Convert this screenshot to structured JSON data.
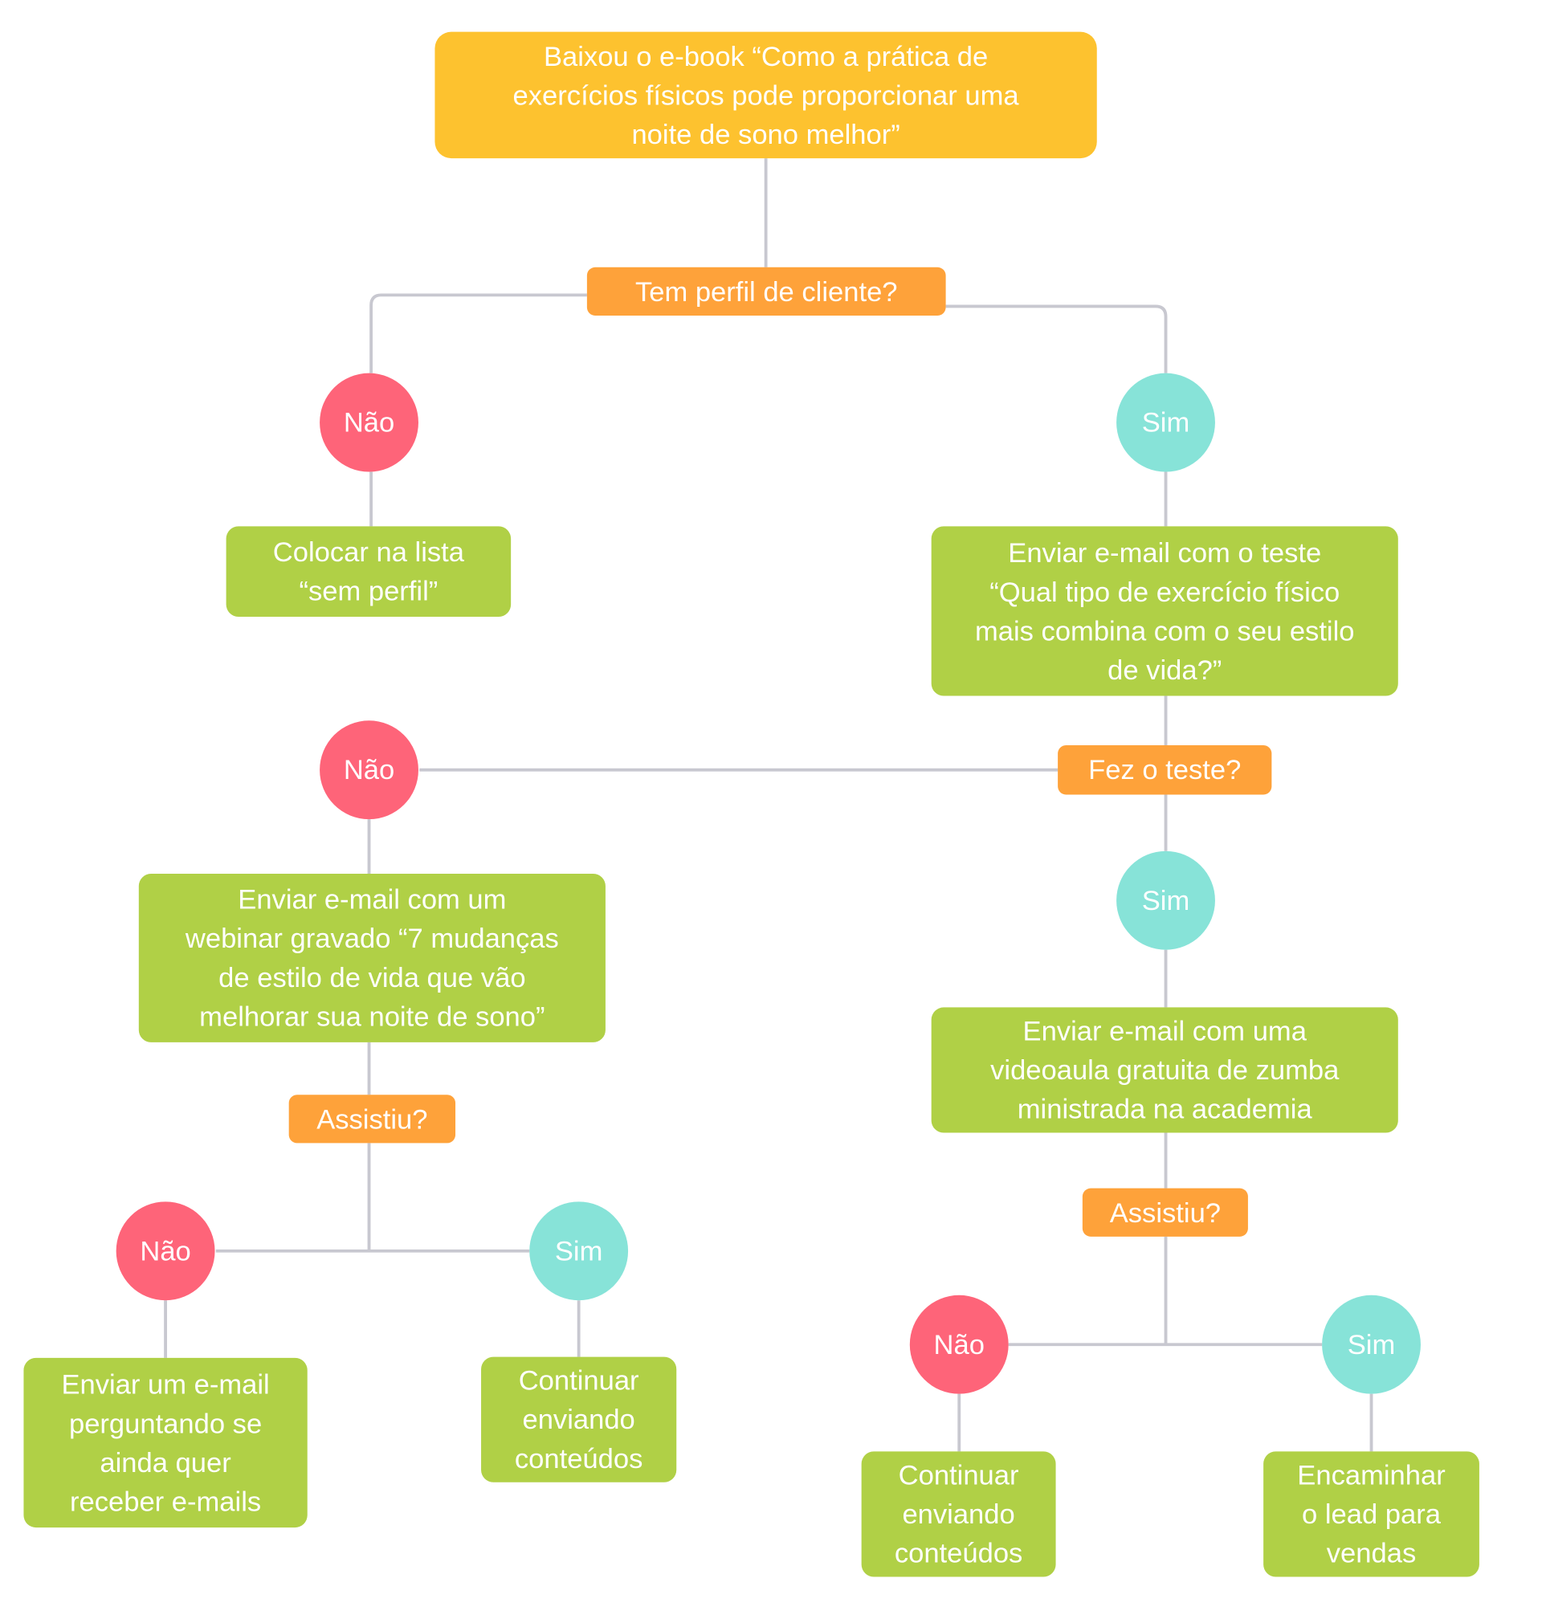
{
  "colors": {
    "start": "#fdc22f",
    "question": "#fea23a",
    "action": "#b0d046",
    "no": "#fe6479",
    "yes": "#87e3d8",
    "connector": "#c8c8d0"
  },
  "start": "Baixou o e-book “Como a prática de\nexercícios físicos pode proporcionar uma\nnoite de sono melhor”",
  "q1": "Tem perfil de cliente?",
  "q1_no": "Não",
  "q1_yes": "Sim",
  "no_profile_action": "Colocar na lista\n“sem perfil”",
  "test_email": "Enviar e-mail com o teste\n“Qual tipo de exercício físico\nmais combina com o seu estilo\nde vida?”",
  "q2": "Fez o teste?",
  "q2_no": "Não",
  "q2_yes": "Sim",
  "webinar_email": "Enviar e-mail com um\nwebinar gravado “7 mudanças\nde estilo de vida que vão\nmelhorar sua noite de sono”",
  "q3": "Assistiu?",
  "q3_no": "Não",
  "q3_yes": "Sim",
  "ask_email": "Enviar um e-mail\nperguntando se\nainda quer\nreceber e-mails",
  "continue_left": "Continuar\nenviando\nconteúdos",
  "zumba_email": "Enviar e-mail com uma\nvideoaula gratuita de zumba\nministrada na academia",
  "q4": "Assistiu?",
  "q4_no": "Não",
  "q4_yes": "Sim",
  "continue_right": "Continuar\nenviando\nconteúdos",
  "sales": "Encaminhar\no lead para\nvendas"
}
